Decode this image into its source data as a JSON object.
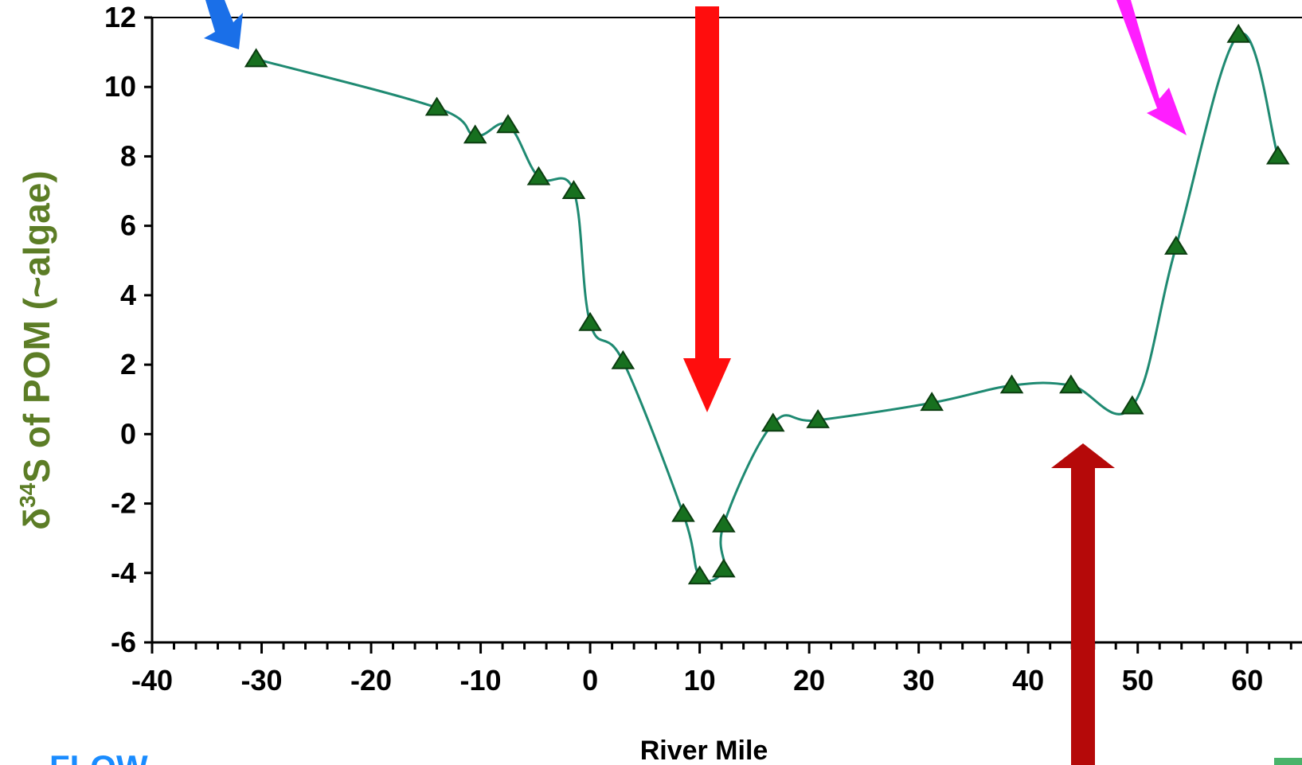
{
  "chart_data": {
    "type": "line",
    "xlabel": "River Mile",
    "ylabel": {
      "prefix": "δ",
      "superscript": "34",
      "main": "S of POM (~algae)"
    },
    "xlim": [
      -40,
      65
    ],
    "ylim": [
      -6,
      12
    ],
    "x_ticks": [
      -40,
      -30,
      -20,
      -10,
      0,
      10,
      20,
      30,
      40,
      50,
      60
    ],
    "y_ticks": [
      12,
      10,
      8,
      6,
      4,
      2,
      0,
      -2,
      -4,
      -6
    ],
    "x_tick_labels": [
      "-40",
      "-30",
      "-20",
      "-10",
      "0",
      "10",
      "20",
      "30",
      "40",
      "50",
      "60"
    ],
    "y_tick_labels": [
      "12",
      "10",
      "8",
      "6",
      "4",
      "2",
      "0",
      "-2",
      "-4",
      "-6"
    ],
    "grid": false,
    "series": [
      {
        "marker": "triangle",
        "color": "#1f8a72",
        "marker_color": "#17701f",
        "points": [
          {
            "x": -30.5,
            "y": 10.8
          },
          {
            "x": -14,
            "y": 9.4
          },
          {
            "x": -10.5,
            "y": 8.6
          },
          {
            "x": -7.5,
            "y": 8.9
          },
          {
            "x": -4.7,
            "y": 7.4
          },
          {
            "x": -1.5,
            "y": 7.0
          },
          {
            "x": 0,
            "y": 3.2
          },
          {
            "x": 3,
            "y": 2.1
          },
          {
            "x": 8.5,
            "y": -2.3
          },
          {
            "x": 10,
            "y": -4.1
          },
          {
            "x": 12.2,
            "y": -3.9
          },
          {
            "x": 12.2,
            "y": -2.6
          },
          {
            "x": 16.7,
            "y": 0.3
          },
          {
            "x": 20.8,
            "y": 0.4
          },
          {
            "x": 31.2,
            "y": 0.9
          },
          {
            "x": 38.5,
            "y": 1.4
          },
          {
            "x": 43.9,
            "y": 1.4
          },
          {
            "x": 49.5,
            "y": 0.8
          },
          {
            "x": 53.5,
            "y": 5.4
          },
          {
            "x": 59.2,
            "y": 11.5
          },
          {
            "x": 62.8,
            "y": 8.0
          }
        ]
      }
    ]
  },
  "annotations": {
    "flow_label": "FLOW",
    "colors": {
      "blue_arrow": "#1a6fe8",
      "magenta_arrow": "#ff1eff",
      "red_arrow": "#ff0d0d",
      "darkred_arrow": "#b50909",
      "ylabel": "#5c7d26",
      "flow_text": "#1a8cff"
    }
  }
}
